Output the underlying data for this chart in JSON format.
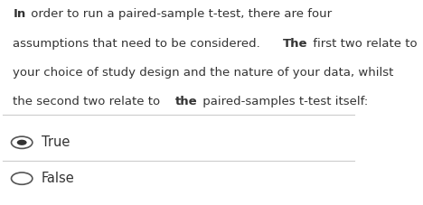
{
  "background_color": "#ffffff",
  "paragraph_lines": [
    [
      [
        "In",
        true
      ],
      [
        " order to run a paired-sample t-test, there are four",
        false
      ]
    ],
    [
      [
        "assumptions that need to be considered. ",
        false
      ],
      [
        "The",
        true
      ],
      [
        " first two relate to",
        false
      ]
    ],
    [
      [
        "your choice of study design and the nature of your data, whilst",
        false
      ]
    ],
    [
      [
        "the second two relate to ",
        false
      ],
      [
        "the",
        true
      ],
      [
        " paired-samples t-test itself:",
        false
      ]
    ]
  ],
  "options": [
    "True",
    "False"
  ],
  "selected_option": "True",
  "divider_color": "#cccccc",
  "text_color": "#333333",
  "radio_color": "#555555",
  "radio_selected_color": "#333333",
  "font_size_paragraph": 9.5,
  "font_size_options": 10.5,
  "fig_width": 4.68,
  "fig_height": 2.27,
  "dpi": 100
}
